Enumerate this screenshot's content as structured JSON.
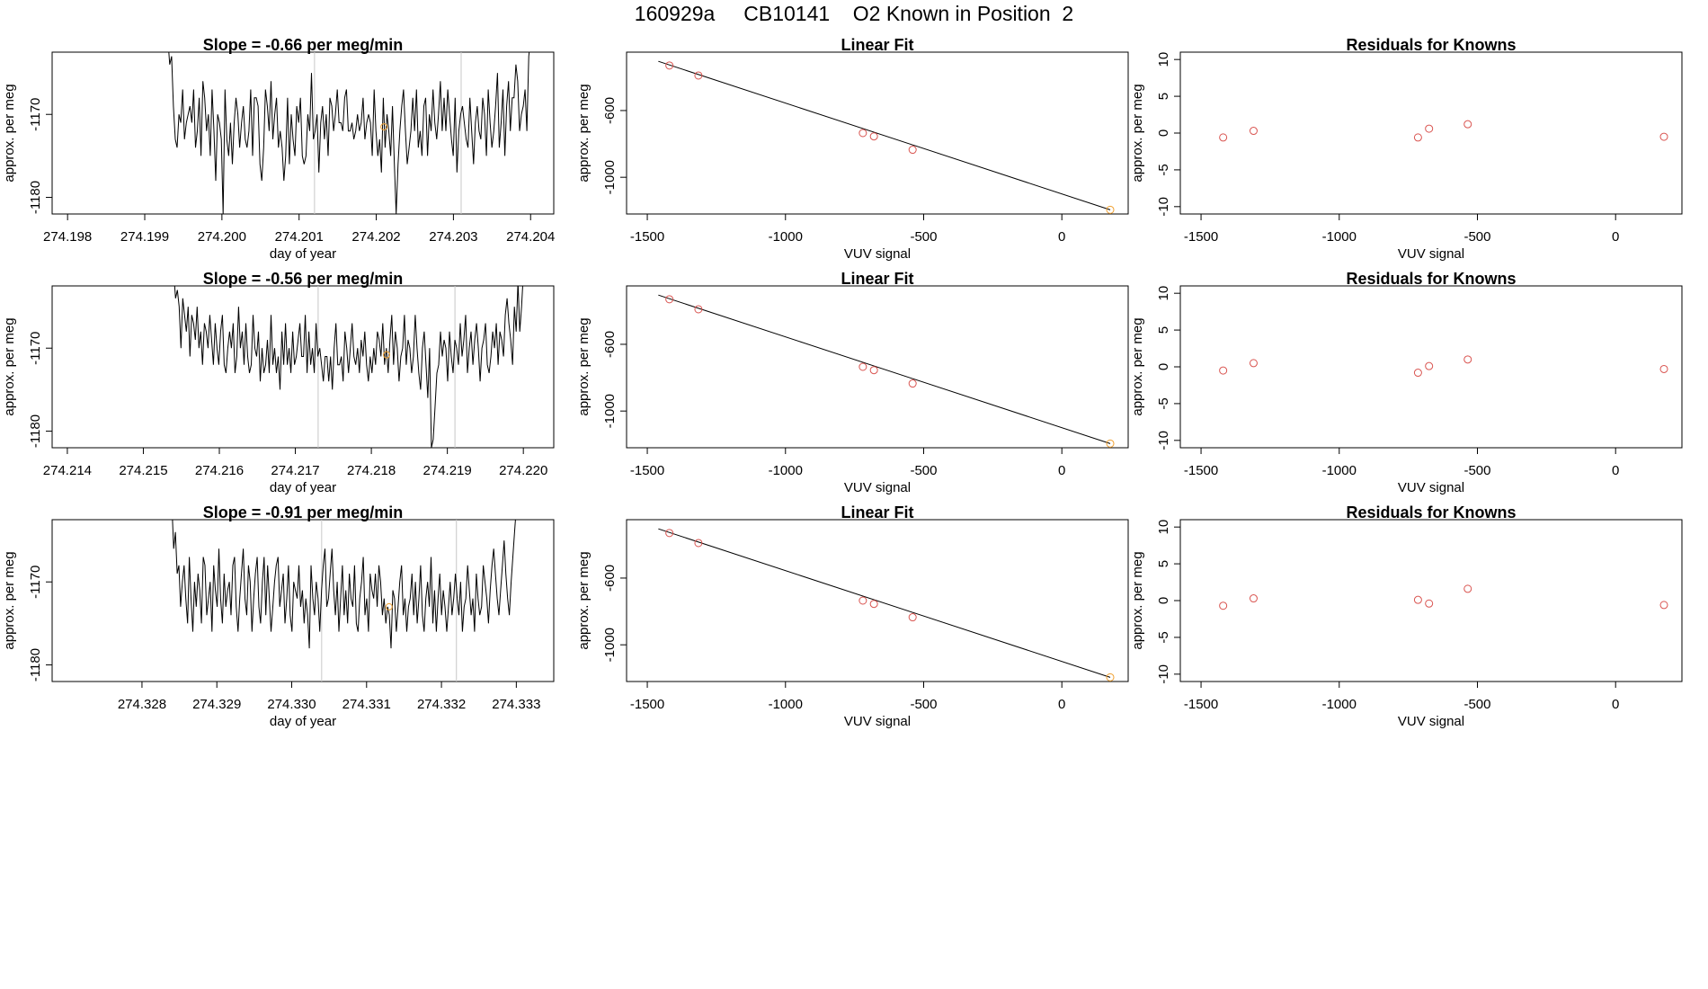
{
  "page": {
    "title": "160929a     CB10141    O2 Known in Position  2"
  },
  "colors": {
    "axis": "#000000",
    "line": "#000000",
    "known_marker": "#d9534f",
    "highlight_marker": "#f0a030",
    "vline": "#c8c8c8"
  },
  "chart_data": [
    {
      "type": "line",
      "title": "Slope =  -0.66  per meg/min",
      "xlabel": "day of year",
      "ylabel": "approx. per meg",
      "x_ticks": [
        "274.198",
        "274.199",
        "274.200",
        "274.201",
        "274.202",
        "274.203",
        "274.204"
      ],
      "x_tick_values": [
        274.198,
        274.199,
        274.2,
        274.201,
        274.202,
        274.203,
        274.204
      ],
      "y_ticks": [
        "-1170",
        "-1180"
      ],
      "y_tick_values": [
        -1170,
        -1180
      ],
      "xlim": [
        274.1978,
        274.2043
      ],
      "ylim": [
        -1182,
        -1162.5
      ],
      "x_start": 274.1993,
      "x_end": 274.204,
      "vlines": [
        274.2012,
        274.2031
      ],
      "highlight": {
        "x": 274.2021,
        "y": -1171.5
      },
      "values": [
        -1161,
        -1164,
        -1163,
        -1169,
        -1173,
        -1174,
        -1170,
        -1171,
        -1167,
        -1173,
        -1171,
        -1170,
        -1169,
        -1171,
        -1167,
        -1174,
        -1172,
        -1168,
        -1175,
        -1166,
        -1168,
        -1172,
        -1170,
        -1175,
        -1167,
        -1172,
        -1178,
        -1170,
        -1171,
        -1173,
        -1182,
        -1167,
        -1173,
        -1175,
        -1171,
        -1176,
        -1171,
        -1168,
        -1170,
        -1174,
        -1171,
        -1169,
        -1173,
        -1174,
        -1172,
        -1167,
        -1175,
        -1168,
        -1168,
        -1169,
        -1176,
        -1178,
        -1174,
        -1167,
        -1169,
        -1172,
        -1166,
        -1173,
        -1170,
        -1168,
        -1174,
        -1172,
        -1174,
        -1178,
        -1175,
        -1168,
        -1176,
        -1170,
        -1173,
        -1175,
        -1169,
        -1171,
        -1168,
        -1175,
        -1176,
        -1175,
        -1170,
        -1172,
        -1165,
        -1173,
        -1172,
        -1170,
        -1177,
        -1171,
        -1169,
        -1173,
        -1170,
        -1175,
        -1168,
        -1169,
        -1172,
        -1170,
        -1167,
        -1171,
        -1171,
        -1172,
        -1168,
        -1167,
        -1172,
        -1172,
        -1171,
        -1173,
        -1172,
        -1170,
        -1172,
        -1171,
        -1168,
        -1173,
        -1171,
        -1170,
        -1171,
        -1175,
        -1167,
        -1172,
        -1175,
        -1173,
        -1177,
        -1168,
        -1174,
        -1170,
        -1172,
        -1175,
        -1169,
        -1176,
        -1182,
        -1176,
        -1172,
        -1169,
        -1167,
        -1172,
        -1176,
        -1174,
        -1172,
        -1168,
        -1172,
        -1167,
        -1174,
        -1172,
        -1175,
        -1169,
        -1168,
        -1175,
        -1170,
        -1172,
        -1167,
        -1171,
        -1173,
        -1170,
        -1166,
        -1172,
        -1168,
        -1172,
        -1167,
        -1170,
        -1173,
        -1175,
        -1168,
        -1177,
        -1172,
        -1170,
        -1169,
        -1171,
        -1173,
        -1174,
        -1168,
        -1172,
        -1176,
        -1171,
        -1169,
        -1172,
        -1173,
        -1168,
        -1170,
        -1175,
        -1167,
        -1171,
        -1174,
        -1172,
        -1169,
        -1165,
        -1174,
        -1171,
        -1167,
        -1175,
        -1169,
        -1166,
        -1172,
        -1168,
        -1168,
        -1164,
        -1166,
        -1172,
        -1170,
        -1169,
        -1167,
        -1172,
        -1163,
        -1161
      ]
    },
    {
      "type": "scatter",
      "title": "Linear Fit",
      "xlabel": "VUV signal",
      "ylabel": "approx. per meg",
      "x_ticks": [
        "-1500",
        "-1000",
        "-500",
        "0"
      ],
      "x_tick_values": [
        -1500,
        -1000,
        -500,
        0
      ],
      "y_ticks": [
        "-600",
        "-1000"
      ],
      "y_tick_values": [
        -600,
        -1000
      ],
      "xlim": [
        -1575,
        240
      ],
      "ylim": [
        -1220,
        -250
      ],
      "points": [
        [
          -1420,
          -330
        ],
        [
          -1315,
          -390
        ],
        [
          -720,
          -735
        ],
        [
          -680,
          -755
        ],
        [
          -540,
          -835
        ]
      ],
      "highlight": {
        "x": 175,
        "y": -1195
      },
      "fit_line": [
        [
          -1460,
          -305
        ],
        [
          175,
          -1195
        ]
      ]
    },
    {
      "type": "scatter",
      "title": "Residuals for Knowns",
      "xlabel": "VUV signal",
      "ylabel": "approx. per meg",
      "x_ticks": [
        "-1500",
        "-1000",
        "-500",
        "0"
      ],
      "x_tick_values": [
        -1500,
        -1000,
        -500,
        0
      ],
      "y_ticks": [
        "10",
        "5",
        "0",
        "-5",
        "-10"
      ],
      "y_tick_values": [
        10,
        5,
        0,
        -5,
        -10
      ],
      "xlim": [
        -1575,
        240
      ],
      "ylim": [
        -11,
        11
      ],
      "points": [
        [
          -1420,
          -0.6
        ],
        [
          -1310,
          0.3
        ],
        [
          -715,
          -0.6
        ],
        [
          -675,
          0.6
        ],
        [
          -535,
          1.2
        ],
        [
          175,
          -0.5
        ]
      ]
    },
    {
      "type": "line",
      "title": "Slope =  -0.56  per meg/min",
      "xlabel": "day of year",
      "ylabel": "approx. per meg",
      "x_ticks": [
        "274.214",
        "274.215",
        "274.216",
        "274.217",
        "274.218",
        "274.219",
        "274.220"
      ],
      "x_tick_values": [
        274.214,
        274.215,
        274.216,
        274.217,
        274.218,
        274.219,
        274.22
      ],
      "y_ticks": [
        "-1170",
        "-1180"
      ],
      "y_tick_values": [
        -1170,
        -1180
      ],
      "xlim": [
        274.2138,
        274.2204
      ],
      "ylim": [
        -1182,
        -1162.5
      ],
      "x_start": 274.2154,
      "x_end": 274.22,
      "vlines": [
        274.2173,
        274.2191
      ],
      "highlight": {
        "x": 274.2182,
        "y": -1170.8
      },
      "values": [
        -1161,
        -1164,
        -1163,
        -1165,
        -1170,
        -1164,
        -1166,
        -1168,
        -1165,
        -1171,
        -1166,
        -1167,
        -1169,
        -1165,
        -1170,
        -1168,
        -1172,
        -1167,
        -1168,
        -1170,
        -1166,
        -1169,
        -1172,
        -1167,
        -1170,
        -1172,
        -1168,
        -1166,
        -1172,
        -1173,
        -1170,
        -1168,
        -1170,
        -1167,
        -1173,
        -1171,
        -1165,
        -1170,
        -1168,
        -1172,
        -1167,
        -1171,
        -1173,
        -1172,
        -1166,
        -1170,
        -1171,
        -1168,
        -1174,
        -1170,
        -1173,
        -1172,
        -1169,
        -1173,
        -1166,
        -1172,
        -1170,
        -1173,
        -1171,
        -1175,
        -1168,
        -1172,
        -1167,
        -1172,
        -1170,
        -1173,
        -1168,
        -1172,
        -1171,
        -1169,
        -1167,
        -1171,
        -1171,
        -1166,
        -1173,
        -1168,
        -1172,
        -1170,
        -1173,
        -1167,
        -1171,
        -1170,
        -1172,
        -1174,
        -1171,
        -1171,
        -1174,
        -1171,
        -1175,
        -1170,
        -1167,
        -1172,
        -1172,
        -1171,
        -1174,
        -1168,
        -1170,
        -1173,
        -1170,
        -1167,
        -1171,
        -1172,
        -1170,
        -1173,
        -1169,
        -1171,
        -1168,
        -1172,
        -1174,
        -1171,
        -1173,
        -1170,
        -1172,
        -1168,
        -1169,
        -1171,
        -1167,
        -1172,
        -1170,
        -1173,
        -1169,
        -1166,
        -1172,
        -1168,
        -1170,
        -1174,
        -1171,
        -1170,
        -1166,
        -1172,
        -1169,
        -1170,
        -1173,
        -1171,
        -1166,
        -1170,
        -1173,
        -1175,
        -1170,
        -1168,
        -1172,
        -1176,
        -1170,
        -1182,
        -1181,
        -1177,
        -1173,
        -1172,
        -1168,
        -1171,
        -1169,
        -1170,
        -1174,
        -1168,
        -1171,
        -1173,
        -1169,
        -1170,
        -1172,
        -1167,
        -1171,
        -1169,
        -1166,
        -1173,
        -1170,
        -1168,
        -1172,
        -1169,
        -1167,
        -1170,
        -1174,
        -1170,
        -1169,
        -1167,
        -1172,
        -1173,
        -1171,
        -1168,
        -1170,
        -1167,
        -1172,
        -1168,
        -1169,
        -1171,
        -1166,
        -1164,
        -1167,
        -1169,
        -1172,
        -1165,
        -1168,
        -1162,
        -1168,
        -1165,
        -1161
      ]
    },
    {
      "type": "scatter",
      "title": "Linear Fit",
      "xlabel": "VUV signal",
      "ylabel": "approx. per meg",
      "x_ticks": [
        "-1500",
        "-1000",
        "-500",
        "0"
      ],
      "x_tick_values": [
        -1500,
        -1000,
        -500,
        0
      ],
      "y_ticks": [
        "-600",
        "-1000"
      ],
      "y_tick_values": [
        -600,
        -1000
      ],
      "xlim": [
        -1575,
        240
      ],
      "ylim": [
        -1220,
        -250
      ],
      "points": [
        [
          -1420,
          -330
        ],
        [
          -1315,
          -390
        ],
        [
          -720,
          -735
        ],
        [
          -680,
          -755
        ],
        [
          -540,
          -835
        ]
      ],
      "highlight": {
        "x": 175,
        "y": -1195
      },
      "fit_line": [
        [
          -1460,
          -305
        ],
        [
          175,
          -1195
        ]
      ]
    },
    {
      "type": "scatter",
      "title": "Residuals for Knowns",
      "xlabel": "VUV signal",
      "ylabel": "approx. per meg",
      "x_ticks": [
        "-1500",
        "-1000",
        "-500",
        "0"
      ],
      "x_tick_values": [
        -1500,
        -1000,
        -500,
        0
      ],
      "y_ticks": [
        "10",
        "5",
        "0",
        "-5",
        "-10"
      ],
      "y_tick_values": [
        10,
        5,
        0,
        -5,
        -10
      ],
      "xlim": [
        -1575,
        240
      ],
      "ylim": [
        -11,
        11
      ],
      "points": [
        [
          -1420,
          -0.5
        ],
        [
          -1310,
          0.5
        ],
        [
          -715,
          -0.8
        ],
        [
          -675,
          0.1
        ],
        [
          -535,
          1.0
        ],
        [
          175,
          -0.3
        ]
      ]
    },
    {
      "type": "line",
      "title": "Slope =  -0.91  per meg/min",
      "xlabel": "day of year",
      "ylabel": "approx. per meg",
      "x_ticks": [
        "274.328",
        "274.329",
        "274.330",
        "274.331",
        "274.332",
        "274.333"
      ],
      "x_tick_values": [
        274.328,
        274.329,
        274.33,
        274.331,
        274.332,
        274.333
      ],
      "y_ticks": [
        "-1170",
        "-1180"
      ],
      "y_tick_values": [
        -1170,
        -1180
      ],
      "xlim": [
        274.3268,
        274.3335
      ],
      "ylim": [
        -1182,
        -1162.5
      ],
      "x_start": 274.3284,
      "x_end": 274.333,
      "vlines": [
        274.3304,
        274.3322
      ],
      "highlight": {
        "x": 274.3313,
        "y": -1173
      },
      "values": [
        -1161,
        -1166,
        -1164,
        -1169,
        -1168,
        -1173,
        -1170,
        -1168,
        -1172,
        -1175,
        -1167,
        -1172,
        -1176,
        -1170,
        -1173,
        -1169,
        -1171,
        -1175,
        -1167,
        -1168,
        -1174,
        -1172,
        -1170,
        -1176,
        -1168,
        -1171,
        -1173,
        -1166,
        -1172,
        -1175,
        -1169,
        -1173,
        -1171,
        -1170,
        -1174,
        -1168,
        -1167,
        -1173,
        -1176,
        -1172,
        -1169,
        -1166,
        -1172,
        -1174,
        -1168,
        -1170,
        -1176,
        -1172,
        -1169,
        -1167,
        -1173,
        -1175,
        -1170,
        -1167,
        -1174,
        -1168,
        -1172,
        -1176,
        -1173,
        -1170,
        -1168,
        -1167,
        -1173,
        -1171,
        -1169,
        -1175,
        -1172,
        -1168,
        -1174,
        -1176,
        -1170,
        -1171,
        -1172,
        -1168,
        -1173,
        -1171,
        -1175,
        -1172,
        -1174,
        -1178,
        -1168,
        -1172,
        -1174,
        -1170,
        -1172,
        -1176,
        -1171,
        -1168,
        -1166,
        -1173,
        -1172,
        -1169,
        -1166,
        -1171,
        -1174,
        -1170,
        -1176,
        -1172,
        -1168,
        -1174,
        -1171,
        -1175,
        -1169,
        -1172,
        -1173,
        -1168,
        -1175,
        -1176,
        -1172,
        -1170,
        -1167,
        -1174,
        -1172,
        -1176,
        -1169,
        -1171,
        -1172,
        -1169,
        -1173,
        -1168,
        -1170,
        -1174,
        -1172,
        -1175,
        -1173,
        -1174,
        -1178,
        -1171,
        -1172,
        -1176,
        -1173,
        -1170,
        -1168,
        -1174,
        -1172,
        -1176,
        -1173,
        -1172,
        -1169,
        -1174,
        -1170,
        -1175,
        -1172,
        -1168,
        -1174,
        -1176,
        -1172,
        -1170,
        -1173,
        -1167,
        -1175,
        -1171,
        -1176,
        -1172,
        -1169,
        -1174,
        -1171,
        -1173,
        -1176,
        -1173,
        -1170,
        -1174,
        -1172,
        -1169,
        -1172,
        -1174,
        -1170,
        -1176,
        -1173,
        -1172,
        -1168,
        -1171,
        -1174,
        -1172,
        -1176,
        -1169,
        -1172,
        -1174,
        -1173,
        -1168,
        -1170,
        -1172,
        -1175,
        -1171,
        -1168,
        -1166,
        -1169,
        -1172,
        -1174,
        -1171,
        -1168,
        -1165,
        -1169,
        -1172,
        -1174,
        -1170,
        -1167,
        -1164,
        -1161
      ]
    },
    {
      "type": "scatter",
      "title": "Linear Fit",
      "xlabel": "VUV signal",
      "ylabel": "approx. per meg",
      "x_ticks": [
        "-1500",
        "-1000",
        "-500",
        "0"
      ],
      "x_tick_values": [
        -1500,
        -1000,
        -500,
        0
      ],
      "y_ticks": [
        "-600",
        "-1000"
      ],
      "y_tick_values": [
        -600,
        -1000
      ],
      "xlim": [
        -1575,
        240
      ],
      "ylim": [
        -1220,
        -250
      ],
      "points": [
        [
          -1420,
          -330
        ],
        [
          -1315,
          -390
        ],
        [
          -720,
          -735
        ],
        [
          -680,
          -755
        ],
        [
          -540,
          -835
        ]
      ],
      "highlight": {
        "x": 175,
        "y": -1195
      },
      "fit_line": [
        [
          -1460,
          -305
        ],
        [
          175,
          -1195
        ]
      ]
    },
    {
      "type": "scatter",
      "title": "Residuals for Knowns",
      "xlabel": "VUV signal",
      "ylabel": "approx. per meg",
      "x_ticks": [
        "-1500",
        "-1000",
        "-500",
        "0"
      ],
      "x_tick_values": [
        -1500,
        -1000,
        -500,
        0
      ],
      "y_ticks": [
        "10",
        "5",
        "0",
        "-5",
        "-10"
      ],
      "y_tick_values": [
        10,
        5,
        0,
        -5,
        -10
      ],
      "xlim": [
        -1575,
        240
      ],
      "ylim": [
        -11,
        11
      ],
      "points": [
        [
          -1420,
          -0.7
        ],
        [
          -1310,
          0.3
        ],
        [
          -715,
          0.1
        ],
        [
          -675,
          -0.4
        ],
        [
          -535,
          1.6
        ],
        [
          175,
          -0.6
        ]
      ]
    }
  ]
}
